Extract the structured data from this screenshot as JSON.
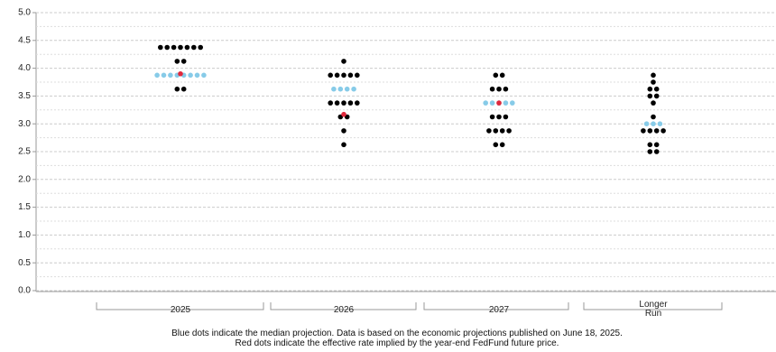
{
  "chart_data": {
    "type": "dot_plot",
    "categories": [
      "2025",
      "2026",
      "2027",
      "Longer Run"
    ],
    "projections": [
      {
        "levels": [
          {
            "rate": 4.375,
            "count": 7
          },
          {
            "rate": 4.125,
            "count": 2
          },
          {
            "rate": 3.875,
            "count": 8
          },
          {
            "rate": 3.625,
            "count": 2
          }
        ]
      },
      {
        "levels": [
          {
            "rate": 4.125,
            "count": 1
          },
          {
            "rate": 3.875,
            "count": 5
          },
          {
            "rate": 3.625,
            "count": 4
          },
          {
            "rate": 3.375,
            "count": 5
          },
          {
            "rate": 3.125,
            "count": 2
          },
          {
            "rate": 2.875,
            "count": 1
          },
          {
            "rate": 2.625,
            "count": 1
          }
        ]
      },
      {
        "levels": [
          {
            "rate": 3.875,
            "count": 2
          },
          {
            "rate": 3.625,
            "count": 3
          },
          {
            "rate": 3.375,
            "count": 5
          },
          {
            "rate": 3.125,
            "count": 3
          },
          {
            "rate": 2.875,
            "count": 4
          },
          {
            "rate": 2.625,
            "count": 2
          }
        ]
      },
      {
        "levels": [
          {
            "rate": 3.875,
            "count": 1
          },
          {
            "rate": 3.75,
            "count": 1
          },
          {
            "rate": 3.625,
            "count": 2
          },
          {
            "rate": 3.5,
            "count": 2
          },
          {
            "rate": 3.375,
            "count": 1
          },
          {
            "rate": 3.125,
            "count": 1
          },
          {
            "rate": 3.0,
            "count": 3
          },
          {
            "rate": 2.875,
            "count": 4
          },
          {
            "rate": 2.625,
            "count": 2
          },
          {
            "rate": 2.5,
            "count": 2
          }
        ]
      }
    ],
    "median": [
      3.875,
      3.625,
      3.375,
      3.0
    ],
    "fedfund_implied": [
      3.9,
      3.17,
      3.375,
      null
    ],
    "dot_color": "#000000",
    "median_color": "#87cbe8",
    "implied_color": "#e0283c",
    "ylim": [
      0,
      5
    ],
    "yticks": [
      {
        "value": 0,
        "label": "0.0"
      },
      {
        "value": 0.5,
        "label": "0.5"
      },
      {
        "value": 1,
        "label": "1.0"
      },
      {
        "value": 1.5,
        "label": "1.5"
      },
      {
        "value": 2,
        "label": "2.0"
      },
      {
        "value": 2.5,
        "label": "2.5"
      },
      {
        "value": 3,
        "label": "3.0"
      },
      {
        "value": 3.5,
        "label": "3.5"
      },
      {
        "value": 4,
        "label": "4.0"
      },
      {
        "value": 4.5,
        "label": "4.5"
      },
      {
        "value": 5,
        "label": "5.0"
      }
    ],
    "minor_yticks": [
      0.25,
      0.75,
      1.25,
      1.75,
      2.25,
      2.75,
      3.25,
      3.75,
      4.25,
      4.75
    ],
    "grid": true,
    "footnote": [
      "Blue dots indicate the median projection. Data is based on the economic projections published on June 18, 2025.",
      "Red dots indicate the effective rate implied by the year-end FedFund future price."
    ]
  }
}
